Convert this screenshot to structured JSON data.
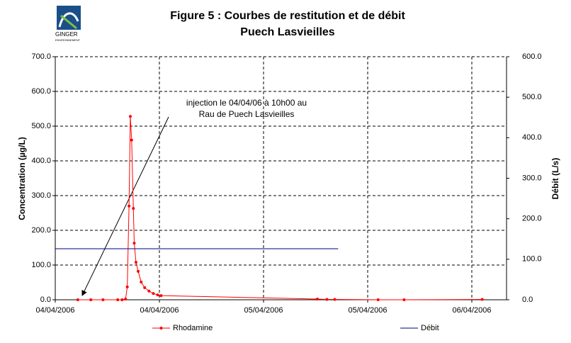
{
  "logo": {
    "line1": "GINGER",
    "line2": "ENVIRONNEMENT"
  },
  "chart_data": {
    "type": "line",
    "title": "Figure 5 : Courbes de restitution et de débit",
    "subtitle": "Puech Lasvieilles",
    "y_label": "Concentration (µg/L)",
    "y2_label": "Débit (L/s)",
    "annotation": [
      "injection le 04/04/06 à 10h00 au",
      "Rau de Puech Lasvieilles"
    ],
    "xlim": [
      0,
      52
    ],
    "xticks": [
      {
        "value": 0,
        "label": "04/04/2006"
      },
      {
        "value": 12,
        "label": "04/04/2006"
      },
      {
        "value": 24,
        "label": "05/04/2006"
      },
      {
        "value": 36,
        "label": "05/04/2006"
      },
      {
        "value": 48,
        "label": "06/04/2006"
      }
    ],
    "ylim": [
      0,
      700
    ],
    "yticks": [
      {
        "value": 0,
        "label": "0.0"
      },
      {
        "value": 100,
        "label": "100.0"
      },
      {
        "value": 200,
        "label": "200.0"
      },
      {
        "value": 300,
        "label": "300.0"
      },
      {
        "value": 400,
        "label": "400.0"
      },
      {
        "value": 500,
        "label": "500.0"
      },
      {
        "value": 600,
        "label": "600.0"
      },
      {
        "value": 700,
        "label": "700.0"
      }
    ],
    "y2lim": [
      0,
      600
    ],
    "y2ticks": [
      {
        "value": 0,
        "label": "0.0"
      },
      {
        "value": 100,
        "label": "100.0"
      },
      {
        "value": 200,
        "label": "200.0"
      },
      {
        "value": 300,
        "label": "300.0"
      },
      {
        "value": 400,
        "label": "400.0"
      },
      {
        "value": 500,
        "label": "500.0"
      },
      {
        "value": 600,
        "label": "600.0"
      }
    ],
    "grid": true,
    "series": [
      {
        "name": "Rhodamine",
        "color": "#ff0000",
        "markers": true,
        "x": [
          2.6,
          4.1,
          5.5,
          7.2,
          7.7,
          8.1,
          8.3,
          8.5,
          8.65,
          8.8,
          9.0,
          9.1,
          9.3,
          9.55,
          9.9,
          10.3,
          10.8,
          11.3,
          11.8,
          12.2,
          30.2,
          31.3,
          32.2,
          37.2,
          40.2,
          49.2
        ],
        "values": [
          0,
          0,
          0,
          0,
          0,
          2,
          37,
          270,
          528,
          460,
          263,
          163,
          108,
          82,
          51,
          35,
          25,
          18,
          14,
          12,
          2,
          1,
          1,
          0,
          0,
          1
        ]
      },
      {
        "name": "Débit",
        "color": "#000080",
        "markers": false,
        "axis": "y2",
        "x": [
          0,
          32.6
        ],
        "values": [
          126,
          126
        ]
      }
    ]
  }
}
